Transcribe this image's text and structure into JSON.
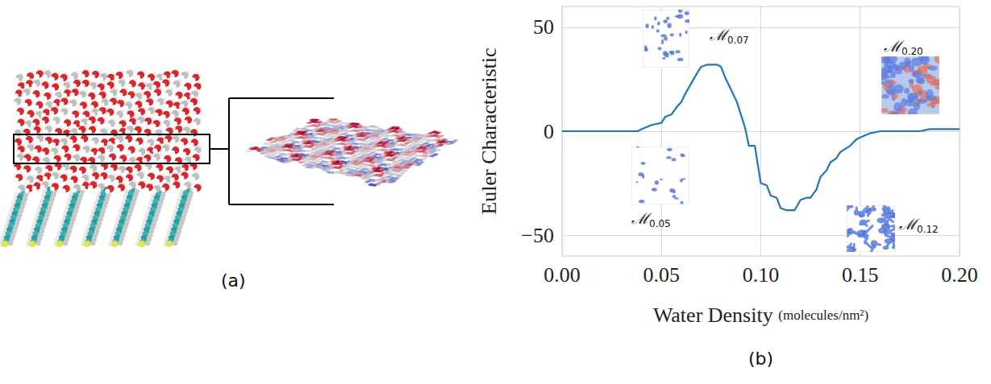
{
  "chart_data": {
    "type": "line",
    "ylabel": "Euler Characteristic",
    "xlabel": "Water Density",
    "xlabel_unit": "(molecules/nm²)",
    "x": [
      0,
      0.038,
      0.04,
      0.045,
      0.05,
      0.052,
      0.055,
      0.058,
      0.06,
      0.062,
      0.065,
      0.068,
      0.07,
      0.073,
      0.078,
      0.08,
      0.082,
      0.085,
      0.088,
      0.09,
      0.092,
      0.094,
      0.097,
      0.1,
      0.103,
      0.105,
      0.108,
      0.11,
      0.113,
      0.117,
      0.12,
      0.123,
      0.125,
      0.128,
      0.13,
      0.133,
      0.135,
      0.138,
      0.14,
      0.145,
      0.148,
      0.15,
      0.155,
      0.16,
      0.18,
      0.185,
      0.2
    ],
    "values": [
      0,
      0,
      1,
      3,
      4,
      7,
      8,
      12,
      14,
      18,
      23,
      28,
      31,
      32,
      32,
      31,
      26,
      20,
      14,
      8,
      2,
      -7,
      -7,
      -25,
      -26,
      -31,
      -32,
      -37,
      -38,
      -38,
      -33,
      -32,
      -32,
      -28,
      -22,
      -19,
      -15,
      -13,
      -10,
      -7,
      -4,
      -3,
      -1,
      0,
      0,
      1,
      1
    ],
    "color": "#1f77b4",
    "xlim": [
      0,
      0.2
    ],
    "ylim": [
      -60,
      60
    ],
    "xticks": [
      {
        "value": 0,
        "label": "0.00"
      },
      {
        "value": 0.05,
        "label": "0.05"
      },
      {
        "value": 0.1,
        "label": "0.10"
      },
      {
        "value": 0.15,
        "label": "0.15"
      },
      {
        "value": 0.2,
        "label": "0.20"
      }
    ],
    "yticks": [
      {
        "value": -50,
        "label": "−50"
      },
      0,
      50
    ],
    "grid": true,
    "annotations": [
      {
        "text": "ℳ",
        "subscript": "0.07"
      },
      {
        "text": "ℳ",
        "subscript": "0.05"
      },
      {
        "text": "ℳ",
        "subscript": "0.20"
      },
      {
        "text": "ℳ",
        "subscript": "0.12"
      }
    ]
  },
  "panels": [
    {
      "label": "(a)"
    },
    {
      "label": "(b)"
    }
  ]
}
